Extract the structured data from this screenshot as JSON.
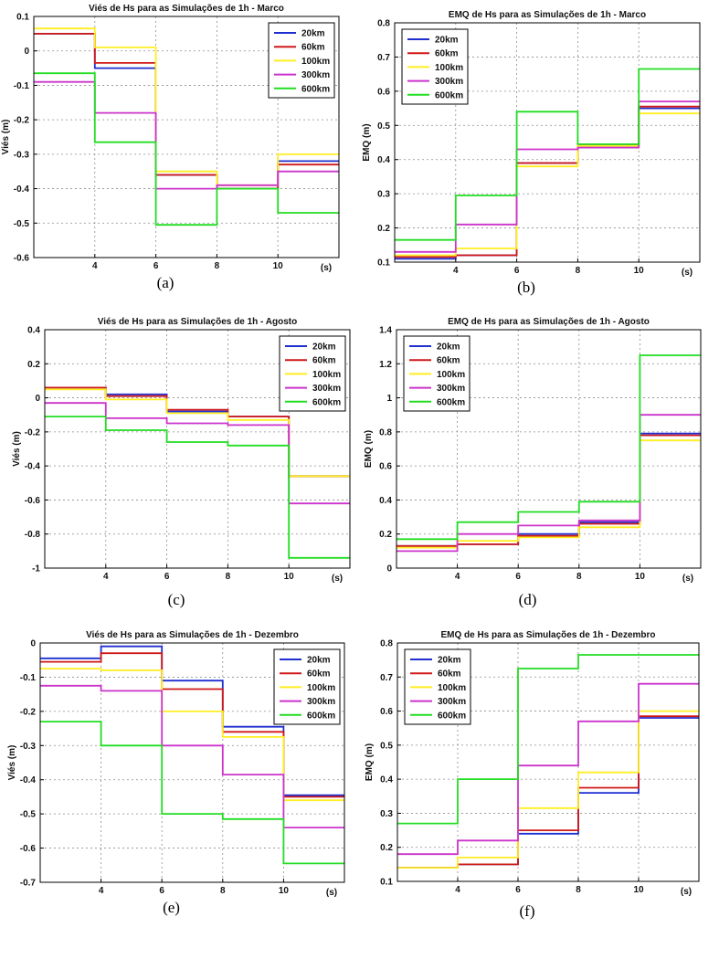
{
  "colors": {
    "20km": "#1f2fd0",
    "60km": "#d01818",
    "100km": "#ffee22",
    "300km": "#cc33cc",
    "600km": "#22dd22"
  },
  "chart_data": [
    {
      "type": "line",
      "title": "Viés de Hs para as Simulações de 1h - Marco",
      "ylabel": "Viés  (m)",
      "xlabel": "(s)",
      "caption": "(a)",
      "xlim": [
        2,
        12
      ],
      "ylim": [
        -0.6,
        0.1
      ],
      "xticks": [
        4,
        6,
        8,
        10
      ],
      "xtick_labels": [
        "4",
        "6",
        "8",
        "10"
      ],
      "yticks": [
        -0.6,
        -0.5,
        -0.4,
        -0.3,
        -0.2,
        -0.1,
        0,
        0.1
      ],
      "ytick_labels": [
        "-0.6",
        "-0.5",
        "-0.4",
        "-0.3",
        "-0.2",
        "-0.1",
        "0",
        "0.1"
      ],
      "legend_position": "top-right",
      "legend_labels": [
        "20km",
        "60km",
        "100km",
        "300km",
        "600km"
      ],
      "steps": [
        2,
        4,
        6,
        8,
        10,
        12
      ],
      "series": [
        {
          "name": "20km",
          "color_key": "20km",
          "values": [
            0.05,
            -0.05,
            -0.36,
            -0.4,
            -0.32
          ]
        },
        {
          "name": "60km",
          "color_key": "60km",
          "values": [
            0.05,
            -0.035,
            -0.36,
            -0.4,
            -0.33
          ]
        },
        {
          "name": "100km",
          "color_key": "100km",
          "values": [
            0.065,
            0.01,
            -0.35,
            -0.39,
            -0.3
          ]
        },
        {
          "name": "300km",
          "color_key": "300km",
          "values": [
            -0.09,
            -0.18,
            -0.4,
            -0.39,
            -0.35
          ]
        },
        {
          "name": "600km",
          "color_key": "600km",
          "values": [
            -0.065,
            -0.265,
            -0.505,
            -0.4,
            -0.47
          ]
        }
      ]
    },
    {
      "type": "line",
      "title": "EMQ de Hs para as Simulações de 1h - Marco",
      "ylabel": "EMQ  (m)",
      "xlabel": "(s)",
      "caption": "(b)",
      "xlim": [
        2,
        12
      ],
      "ylim": [
        0.1,
        0.8
      ],
      "xticks": [
        4,
        6,
        8,
        10
      ],
      "xtick_labels": [
        "4",
        "6",
        "8",
        "10"
      ],
      "yticks": [
        0.1,
        0.2,
        0.3,
        0.4,
        0.5,
        0.6,
        0.7,
        0.8
      ],
      "ytick_labels": [
        "0.1",
        "0.2",
        "0.3",
        "0.4",
        "0.5",
        "0.6",
        "0.7",
        "0.8"
      ],
      "legend_position": "top-left",
      "legend_labels": [
        "20km",
        "60km",
        "100km",
        "300km",
        "600km"
      ],
      "steps": [
        2,
        4,
        6,
        8,
        10,
        12
      ],
      "series": [
        {
          "name": "20km",
          "color_key": "20km",
          "values": [
            0.11,
            0.12,
            0.39,
            0.44,
            0.55
          ]
        },
        {
          "name": "60km",
          "color_key": "60km",
          "values": [
            0.115,
            0.12,
            0.39,
            0.44,
            0.555
          ]
        },
        {
          "name": "100km",
          "color_key": "100km",
          "values": [
            0.12,
            0.14,
            0.38,
            0.44,
            0.535
          ]
        },
        {
          "name": "300km",
          "color_key": "300km",
          "values": [
            0.13,
            0.21,
            0.43,
            0.435,
            0.57
          ]
        },
        {
          "name": "600km",
          "color_key": "600km",
          "values": [
            0.165,
            0.295,
            0.54,
            0.445,
            0.665
          ]
        }
      ]
    },
    {
      "type": "line",
      "title": "Viés de Hs para as Simulações de 1h - Agosto",
      "ylabel": "Viés  (m)",
      "xlabel": "(s)",
      "caption": "(c)",
      "xlim": [
        2,
        12
      ],
      "ylim": [
        -1,
        0.4
      ],
      "xticks": [
        4,
        6,
        8,
        10
      ],
      "xtick_labels": [
        "4",
        "6",
        "8",
        "10"
      ],
      "yticks": [
        -1,
        -0.8,
        -0.6,
        -0.4,
        -0.2,
        0,
        0.2,
        0.4
      ],
      "ytick_labels": [
        "-1",
        "-0.8",
        "-0.6",
        "-0.4",
        "-0.2",
        "0",
        "0.2",
        "0.4"
      ],
      "legend_position": "top-right",
      "legend_labels": [
        "20km",
        "60km",
        "100km",
        "300km",
        "600km"
      ],
      "steps": [
        2,
        4,
        6,
        8,
        10,
        12
      ],
      "series": [
        {
          "name": "20km",
          "color_key": "20km",
          "values": [
            0.06,
            0.02,
            -0.08,
            -0.11,
            -0.46
          ]
        },
        {
          "name": "60km",
          "color_key": "60km",
          "values": [
            0.06,
            0.01,
            -0.07,
            -0.11,
            -0.46
          ]
        },
        {
          "name": "100km",
          "color_key": "100km",
          "values": [
            0.05,
            -0.01,
            -0.09,
            -0.13,
            -0.46
          ]
        },
        {
          "name": "300km",
          "color_key": "300km",
          "values": [
            -0.03,
            -0.12,
            -0.15,
            -0.16,
            -0.62
          ]
        },
        {
          "name": "600km",
          "color_key": "600km",
          "values": [
            -0.11,
            -0.19,
            -0.26,
            -0.28,
            -0.94
          ]
        }
      ]
    },
    {
      "type": "line",
      "title": "EMQ de Hs para as Simulações de 1h - Agosto",
      "ylabel": "EMQ  (m)",
      "xlabel": "(s)",
      "caption": "(d)",
      "xlim": [
        2,
        12
      ],
      "ylim": [
        0,
        1.4
      ],
      "xticks": [
        4,
        6,
        8,
        10
      ],
      "xtick_labels": [
        "4",
        "6",
        "8",
        "10"
      ],
      "yticks": [
        0,
        0.2,
        0.4,
        0.6,
        0.8,
        1,
        1.2,
        1.4
      ],
      "ytick_labels": [
        "0",
        "0.2",
        "0.4",
        "0.6",
        "0.8",
        "1",
        "1.2",
        "1.4"
      ],
      "legend_position": "top-left",
      "legend_labels": [
        "20km",
        "60km",
        "100km",
        "300km",
        "600km"
      ],
      "steps": [
        2,
        4,
        6,
        8,
        10,
        12
      ],
      "series": [
        {
          "name": "20km",
          "color_key": "20km",
          "values": [
            0.13,
            0.14,
            0.2,
            0.27,
            0.79
          ]
        },
        {
          "name": "60km",
          "color_key": "60km",
          "values": [
            0.13,
            0.14,
            0.19,
            0.26,
            0.78
          ]
        },
        {
          "name": "100km",
          "color_key": "100km",
          "values": [
            0.12,
            0.16,
            0.18,
            0.24,
            0.75
          ]
        },
        {
          "name": "300km",
          "color_key": "300km",
          "values": [
            0.1,
            0.2,
            0.25,
            0.28,
            0.9
          ]
        },
        {
          "name": "600km",
          "color_key": "600km",
          "values": [
            0.17,
            0.27,
            0.33,
            0.39,
            1.25
          ]
        }
      ]
    },
    {
      "type": "line",
      "title": "Viés de Hs para as Simulações de 1h - Dezembro",
      "ylabel": "Viés  (m)",
      "xlabel": "(s)",
      "caption": "(e)",
      "xlim": [
        2,
        12
      ],
      "ylim": [
        -0.7,
        0
      ],
      "xticks": [
        4,
        6,
        8,
        10
      ],
      "xtick_labels": [
        "4",
        "6",
        "8",
        "10"
      ],
      "yticks": [
        -0.7,
        -0.6,
        -0.5,
        -0.4,
        -0.3,
        -0.2,
        -0.1,
        0
      ],
      "ytick_labels": [
        "-0.7",
        "-0.6",
        "-0.5",
        "-0.4",
        "-0.3",
        "-0.2",
        "-0.1",
        "0"
      ],
      "legend_position": "top-right",
      "legend_labels": [
        "20km",
        "60km",
        "100km",
        "300km",
        "600km"
      ],
      "steps": [
        2,
        4,
        6,
        8,
        10,
        12
      ],
      "series": [
        {
          "name": "20km",
          "color_key": "20km",
          "values": [
            -0.045,
            -0.01,
            -0.11,
            -0.245,
            -0.445
          ]
        },
        {
          "name": "60km",
          "color_key": "60km",
          "values": [
            -0.055,
            -0.03,
            -0.135,
            -0.26,
            -0.45
          ]
        },
        {
          "name": "100km",
          "color_key": "100km",
          "values": [
            -0.075,
            -0.08,
            -0.2,
            -0.275,
            -0.46
          ]
        },
        {
          "name": "300km",
          "color_key": "300km",
          "values": [
            -0.125,
            -0.14,
            -0.3,
            -0.385,
            -0.54
          ]
        },
        {
          "name": "600km",
          "color_key": "600km",
          "values": [
            -0.23,
            -0.3,
            -0.5,
            -0.515,
            -0.645
          ]
        }
      ]
    },
    {
      "type": "line",
      "title": "EMQ de Hs para as Simulações de 1h - Dezembro",
      "ylabel": "EMQ  (m)",
      "xlabel": "(s)",
      "caption": "(f)",
      "xlim": [
        2,
        12
      ],
      "ylim": [
        0.1,
        0.8
      ],
      "xticks": [
        4,
        6,
        8,
        10
      ],
      "xtick_labels": [
        "4",
        "6",
        "8",
        "10"
      ],
      "yticks": [
        0.1,
        0.2,
        0.3,
        0.4,
        0.5,
        0.6,
        0.7,
        0.8
      ],
      "ytick_labels": [
        "0.1",
        "0.2",
        "0.3",
        "0.4",
        "0.5",
        "0.6",
        "0.7",
        "0.8"
      ],
      "legend_position": "top-left",
      "legend_labels": [
        "20km",
        "60km",
        "100km",
        "300km",
        "600km"
      ],
      "steps": [
        2,
        4,
        6,
        8,
        10,
        12
      ],
      "series": [
        {
          "name": "20km",
          "color_key": "20km",
          "values": [
            0.14,
            0.15,
            0.24,
            0.36,
            0.58
          ]
        },
        {
          "name": "60km",
          "color_key": "60km",
          "values": [
            0.14,
            0.15,
            0.25,
            0.375,
            0.585
          ]
        },
        {
          "name": "100km",
          "color_key": "100km",
          "values": [
            0.14,
            0.17,
            0.315,
            0.42,
            0.6
          ]
        },
        {
          "name": "300km",
          "color_key": "300km",
          "values": [
            0.18,
            0.22,
            0.44,
            0.57,
            0.68
          ]
        },
        {
          "name": "600km",
          "color_key": "600km",
          "values": [
            0.27,
            0.4,
            0.725,
            0.765,
            0.765
          ]
        }
      ]
    }
  ]
}
